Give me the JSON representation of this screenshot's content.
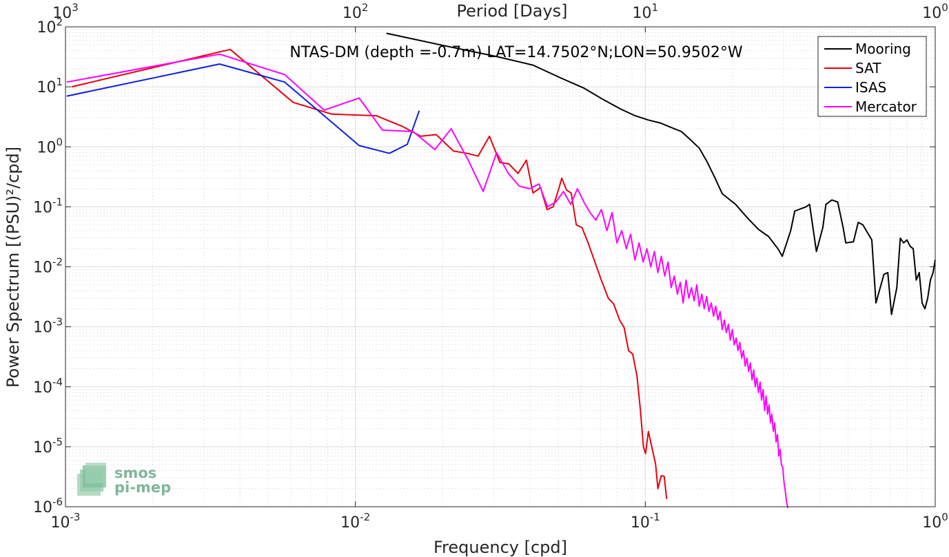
{
  "chart_data": {
    "type": "line",
    "title": "NTAS-DM (depth =-0.7m) LAT=14.7502°N;LON=50.9502°W",
    "xlabel": "Frequency [cpd]",
    "ylabel": "Power Spectrum [(PSU)²/cpd]",
    "top_xlabel": "Period [Days]",
    "xscale": "log",
    "yscale": "log",
    "xlim": [
      0.001,
      1
    ],
    "ylim": [
      1e-06,
      100
    ],
    "grid": true,
    "legend_position": "top-right",
    "x_ticks": [
      {
        "base": "10",
        "exp": "-3"
      },
      {
        "base": "10",
        "exp": "-2"
      },
      {
        "base": "10",
        "exp": "-1"
      },
      {
        "base": "10",
        "exp": "0"
      }
    ],
    "top_ticks": [
      {
        "base": "10",
        "exp": "3"
      },
      {
        "base": "10",
        "exp": "2"
      },
      {
        "base": "10",
        "exp": "1"
      },
      {
        "base": "10",
        "exp": "0"
      }
    ],
    "y_ticks": [
      {
        "base": "10",
        "exp": "-6"
      },
      {
        "base": "10",
        "exp": "-5"
      },
      {
        "base": "10",
        "exp": "-4"
      },
      {
        "base": "10",
        "exp": "-3"
      },
      {
        "base": "10",
        "exp": "-2"
      },
      {
        "base": "10",
        "exp": "-1"
      },
      {
        "base": "10",
        "exp": "0"
      },
      {
        "base": "10",
        "exp": "1"
      },
      {
        "base": "10",
        "exp": "2"
      }
    ],
    "series": [
      {
        "name": "Mooring",
        "color": "#000000",
        "points": [
          [
            0.0128,
            78
          ],
          [
            0.0205,
            48
          ],
          [
            0.0307,
            32
          ],
          [
            0.041,
            23
          ],
          [
            0.0512,
            14
          ],
          [
            0.0615,
            9.5
          ],
          [
            0.0717,
            6.1
          ],
          [
            0.082,
            4.3
          ],
          [
            0.0922,
            3.3
          ],
          [
            0.1024,
            2.8
          ],
          [
            0.1126,
            2.5
          ],
          [
            0.1229,
            2.1
          ],
          [
            0.1331,
            1.8
          ],
          [
            0.1434,
            1.3
          ],
          [
            0.1536,
            0.95
          ],
          [
            0.1638,
            0.55
          ],
          [
            0.1741,
            0.3
          ],
          [
            0.1843,
            0.165
          ],
          [
            0.2048,
            0.11
          ],
          [
            0.2253,
            0.065
          ],
          [
            0.2458,
            0.042
          ],
          [
            0.2662,
            0.032
          ],
          [
            0.2867,
            0.02
          ],
          [
            0.2969,
            0.015
          ],
          [
            0.3174,
            0.04
          ],
          [
            0.3277,
            0.085
          ],
          [
            0.3584,
            0.1
          ],
          [
            0.3686,
            0.11
          ],
          [
            0.3891,
            0.018
          ],
          [
            0.4096,
            0.045
          ],
          [
            0.4198,
            0.11
          ],
          [
            0.4403,
            0.13
          ],
          [
            0.4608,
            0.12
          ],
          [
            0.4813,
            0.045
          ],
          [
            0.4915,
            0.025
          ],
          [
            0.5222,
            0.026
          ],
          [
            0.5427,
            0.055
          ],
          [
            0.5632,
            0.05
          ],
          [
            0.6042,
            0.028
          ],
          [
            0.6246,
            0.0025
          ],
          [
            0.6656,
            0.0075
          ],
          [
            0.6861,
            0.008
          ],
          [
            0.7066,
            0.0016
          ],
          [
            0.7373,
            0.0045
          ],
          [
            0.7578,
            0.03
          ],
          [
            0.7782,
            0.025
          ],
          [
            0.7987,
            0.028
          ],
          [
            0.8192,
            0.022
          ],
          [
            0.8397,
            0.02
          ],
          [
            0.8602,
            0.006
          ],
          [
            0.8806,
            0.008
          ],
          [
            0.9011,
            0.0025
          ],
          [
            0.9216,
            0.002
          ],
          [
            0.9421,
            0.003
          ],
          [
            0.9626,
            0.006
          ],
          [
            0.983,
            0.008
          ],
          [
            1.0,
            0.013
          ]
        ]
      },
      {
        "name": "SAT",
        "color": "#e8000b",
        "points": [
          [
            0.00105,
            10
          ],
          [
            0.0037,
            42
          ],
          [
            0.0061,
            5.5
          ],
          [
            0.0083,
            3.5
          ],
          [
            0.0118,
            3.3
          ],
          [
            0.0145,
            2.2
          ],
          [
            0.0168,
            1.5
          ],
          [
            0.019,
            1.6
          ],
          [
            0.0218,
            0.85
          ],
          [
            0.0243,
            0.78
          ],
          [
            0.0265,
            0.7
          ],
          [
            0.029,
            1.5
          ],
          [
            0.0315,
            0.55
          ],
          [
            0.0338,
            0.52
          ],
          [
            0.0364,
            0.36
          ],
          [
            0.0389,
            0.6
          ],
          [
            0.041,
            0.17
          ],
          [
            0.0435,
            0.21
          ],
          [
            0.0458,
            0.09
          ],
          [
            0.0481,
            0.1
          ],
          [
            0.0503,
            0.2
          ],
          [
            0.0515,
            0.3
          ],
          [
            0.0535,
            0.19
          ],
          [
            0.0555,
            0.17
          ],
          [
            0.0578,
            0.05
          ],
          [
            0.0605,
            0.045
          ],
          [
            0.0635,
            0.025
          ],
          [
            0.067,
            0.012
          ],
          [
            0.0705,
            0.006
          ],
          [
            0.0745,
            0.003
          ],
          [
            0.0778,
            0.0024
          ],
          [
            0.0815,
            0.0013
          ],
          [
            0.0845,
            0.00097
          ],
          [
            0.0876,
            0.0004
          ],
          [
            0.0905,
            0.00035
          ],
          [
            0.0936,
            0.00015
          ],
          [
            0.0962,
            4e-05
          ],
          [
            0.0985,
            1e-05
          ],
          [
            0.1002,
            7.7e-06
          ],
          [
            0.1025,
            1.8e-05
          ],
          [
            0.1055,
            9.5e-06
          ],
          [
            0.1085,
            5.2e-06
          ],
          [
            0.1105,
            2e-06
          ],
          [
            0.1135,
            3.3e-06
          ],
          [
            0.1162,
            3.2e-06
          ],
          [
            0.1185,
            1.35e-06
          ]
        ]
      },
      {
        "name": "ISAS",
        "color": "#0a1fe8",
        "points": [
          [
            0.00101,
            7
          ],
          [
            0.0034,
            24
          ],
          [
            0.0057,
            12
          ],
          [
            0.0103,
            1.05
          ],
          [
            0.0131,
            0.78
          ],
          [
            0.0151,
            1.1
          ],
          [
            0.0166,
            4
          ]
        ]
      },
      {
        "name": "Mercator",
        "color": "#ff00ff",
        "points": [
          [
            0.00101,
            12
          ],
          [
            0.0034,
            35
          ],
          [
            0.0057,
            16
          ],
          [
            0.0078,
            4.1
          ],
          [
            0.0103,
            6.5
          ],
          [
            0.0124,
            1.9
          ],
          [
            0.0158,
            1.8
          ],
          [
            0.0188,
            0.9
          ],
          [
            0.0214,
            2
          ],
          [
            0.0245,
            0.6
          ],
          [
            0.0276,
            0.18
          ],
          [
            0.0307,
            0.8
          ],
          [
            0.0337,
            0.36
          ],
          [
            0.0368,
            0.22
          ],
          [
            0.0399,
            0.2
          ],
          [
            0.043,
            0.24
          ],
          [
            0.046,
            0.1
          ],
          [
            0.0491,
            0.12
          ],
          [
            0.0522,
            0.18
          ],
          [
            0.0553,
            0.11
          ],
          [
            0.0583,
            0.2
          ],
          [
            0.0614,
            0.12
          ],
          [
            0.0645,
            0.08
          ],
          [
            0.0675,
            0.06
          ],
          [
            0.0706,
            0.09
          ],
          [
            0.0737,
            0.04
          ],
          [
            0.0768,
            0.08
          ],
          [
            0.0798,
            0.025
          ],
          [
            0.0829,
            0.04
          ],
          [
            0.086,
            0.02
          ],
          [
            0.089,
            0.035
          ],
          [
            0.0921,
            0.013
          ],
          [
            0.0952,
            0.025
          ],
          [
            0.0983,
            0.012
          ],
          [
            0.1013,
            0.02
          ],
          [
            0.1044,
            0.01
          ],
          [
            0.1075,
            0.018
          ],
          [
            0.1105,
            0.008
          ],
          [
            0.1136,
            0.015
          ],
          [
            0.1167,
            0.007
          ],
          [
            0.1198,
            0.012
          ],
          [
            0.1228,
            0.0045
          ],
          [
            0.1259,
            0.007
          ],
          [
            0.129,
            0.0035
          ],
          [
            0.132,
            0.0055
          ],
          [
            0.1351,
            0.0025
          ],
          [
            0.1382,
            0.006
          ],
          [
            0.1413,
            0.003
          ],
          [
            0.1443,
            0.0045
          ],
          [
            0.1474,
            0.0027
          ],
          [
            0.1505,
            0.005
          ],
          [
            0.1535,
            0.0022
          ],
          [
            0.1566,
            0.0035
          ],
          [
            0.1597,
            0.002
          ],
          [
            0.1628,
            0.0032
          ],
          [
            0.1658,
            0.0018
          ],
          [
            0.1689,
            0.0025
          ],
          [
            0.172,
            0.0015
          ],
          [
            0.175,
            0.0022
          ],
          [
            0.1781,
            0.0013
          ],
          [
            0.1812,
            0.0018
          ],
          [
            0.1843,
            0.0009
          ],
          [
            0.1873,
            0.0013
          ],
          [
            0.1904,
            0.0008
          ],
          [
            0.1935,
            0.0011
          ],
          [
            0.1965,
            0.0006
          ],
          [
            0.1996,
            0.0009
          ],
          [
            0.2027,
            0.0005
          ],
          [
            0.2058,
            0.00065
          ],
          [
            0.2088,
            0.0004
          ],
          [
            0.2119,
            0.00055
          ],
          [
            0.215,
            0.0003
          ],
          [
            0.218,
            0.0004
          ],
          [
            0.2211,
            0.00022
          ],
          [
            0.2242,
            0.0003
          ],
          [
            0.2273,
            0.00018
          ],
          [
            0.2303,
            0.00025
          ],
          [
            0.2334,
            0.00013
          ],
          [
            0.2365,
            0.00019
          ],
          [
            0.2395,
            0.0001
          ],
          [
            0.2426,
            0.00014
          ],
          [
            0.2457,
            8e-05
          ],
          [
            0.2488,
            0.00012
          ],
          [
            0.2518,
            6e-05
          ],
          [
            0.2549,
            9e-05
          ],
          [
            0.258,
            4e-05
          ],
          [
            0.261,
            7e-05
          ],
          [
            0.2641,
            3.5e-05
          ],
          [
            0.2672,
            5e-05
          ],
          [
            0.2703,
            2.5e-05
          ],
          [
            0.2733,
            3.5e-05
          ],
          [
            0.2764,
            1.8e-05
          ],
          [
            0.2795,
            2.5e-05
          ],
          [
            0.2825,
            1.2e-05
          ],
          [
            0.2856,
            1.6e-05
          ],
          [
            0.2887,
            7e-06
          ],
          [
            0.2918,
            9e-06
          ],
          [
            0.2948,
            5e-06
          ],
          [
            0.2979,
            4.5e-06
          ],
          [
            0.301,
            2.5e-06
          ],
          [
            0.304,
            1.8e-06
          ],
          [
            0.3071,
            1.2e-06
          ],
          [
            0.3102,
            9.5e-07
          ]
        ]
      }
    ]
  },
  "logo": {
    "line1": "smos",
    "line2": "pi-mep"
  }
}
